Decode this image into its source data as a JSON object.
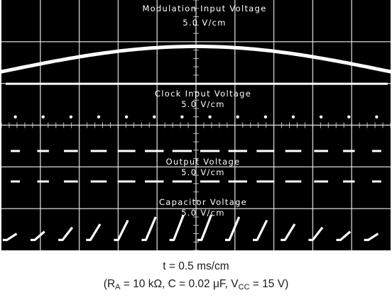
{
  "chart_data": {
    "type": "line",
    "subtype": "oscilloscope-photograph",
    "grid": "10 horizontal x 6 vertical divisions, white gridlines with minor ticks on black screen",
    "background_color": "#000000",
    "trace_color": "#ffffff",
    "time_axis": {
      "scale_label": "t = 0.5 ms/cm",
      "value_ms_per_division": 0.5,
      "range_ms": [
        0,
        5
      ]
    },
    "series": [
      {
        "name": "Modulation Input Voltage",
        "scale_label": "5.0 V/cm",
        "shape": "slow sine hump, peaks mid-screen",
        "x_ms": [
          0,
          1.25,
          2.5,
          3.75,
          5
        ],
        "y_div": [
          0.92,
          1.6,
          1.93,
          1.6,
          0.92
        ]
      },
      {
        "name": "Clock Input Voltage",
        "scale_label": "5.0 V/cm",
        "shape": "narrow pulse train (dots)",
        "pulse_count": 14
      },
      {
        "name": "Output Voltage",
        "scale_label": "5.0 V/cm",
        "shape": "pulse-position-modulated pulse train",
        "pulse_count": 14
      },
      {
        "name": "Capacitor Voltage",
        "scale_label": "5.0 V/cm",
        "shape": "ramps reset by clock, ramp height follows modulation",
        "ramp_count": 14,
        "ramp_height_div": [
          0.15,
          0.2,
          0.3,
          0.38,
          0.47,
          0.55,
          0.6,
          0.6,
          0.55,
          0.47,
          0.38,
          0.3,
          0.2,
          0.15
        ]
      }
    ],
    "conditions": {
      "R_A_label": "R",
      "R_A_sub": "A",
      "R_A_value": " = 10 kΩ, C = 0.02 μF, V",
      "Vcc_sub": "CC",
      "Vcc_value": " = 15 V)"
    }
  },
  "caption_open_paren": "("
}
